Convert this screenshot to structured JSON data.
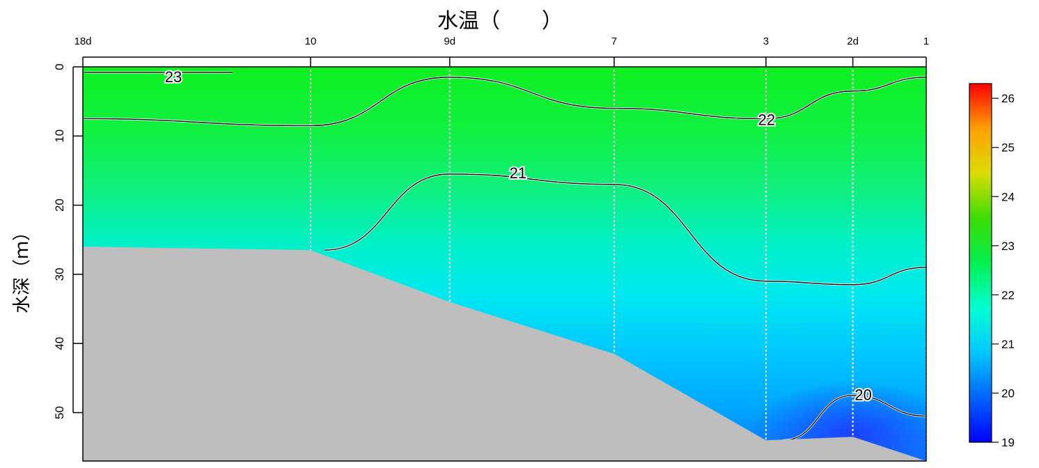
{
  "chart_data": {
    "type": "heatmap",
    "title": "水温（　　）",
    "ylabel": "水深（ｍ）",
    "xlabel": "",
    "stations": [
      "18d",
      "10",
      "9d",
      "7",
      "3",
      "2d",
      "1"
    ],
    "station_order_fraction": [
      0.0,
      0.27,
      0.435,
      0.63,
      0.81,
      0.913,
      1.0
    ],
    "depth_ticks": [
      0,
      10,
      20,
      30,
      40,
      50
    ],
    "depth_range": [
      0,
      57
    ],
    "seafloor_depth_at_station": [
      26,
      26.5,
      34,
      41.5,
      54,
      53.5,
      57
    ],
    "colorbar": {
      "ticks": [
        19,
        20,
        21,
        22,
        23,
        24,
        25,
        26
      ],
      "range": [
        19,
        26.3
      ],
      "colors": [
        "#0000ff",
        "#0064ff",
        "#00c8ff",
        "#00ffd2",
        "#00f050",
        "#3cdc00",
        "#dcdc00",
        "#ffa000",
        "#ff0000"
      ]
    },
    "contours": [
      {
        "level": 23,
        "label": "23",
        "depths": [
          0.8,
          0.8
        ]
      },
      {
        "level": 22,
        "label": "22",
        "depths": [
          7.5,
          8.5,
          1.5,
          6,
          7.5,
          3.5,
          1.5
        ]
      },
      {
        "level": 21,
        "label": "21",
        "depths": [
          null,
          26.5,
          15.5,
          17,
          31,
          31.5,
          29
        ]
      },
      {
        "level": 20,
        "label": "20",
        "depths": [
          null,
          null,
          null,
          null,
          54,
          47.5,
          50.5
        ]
      }
    ],
    "grid": false,
    "legend": "colorbar-right"
  }
}
